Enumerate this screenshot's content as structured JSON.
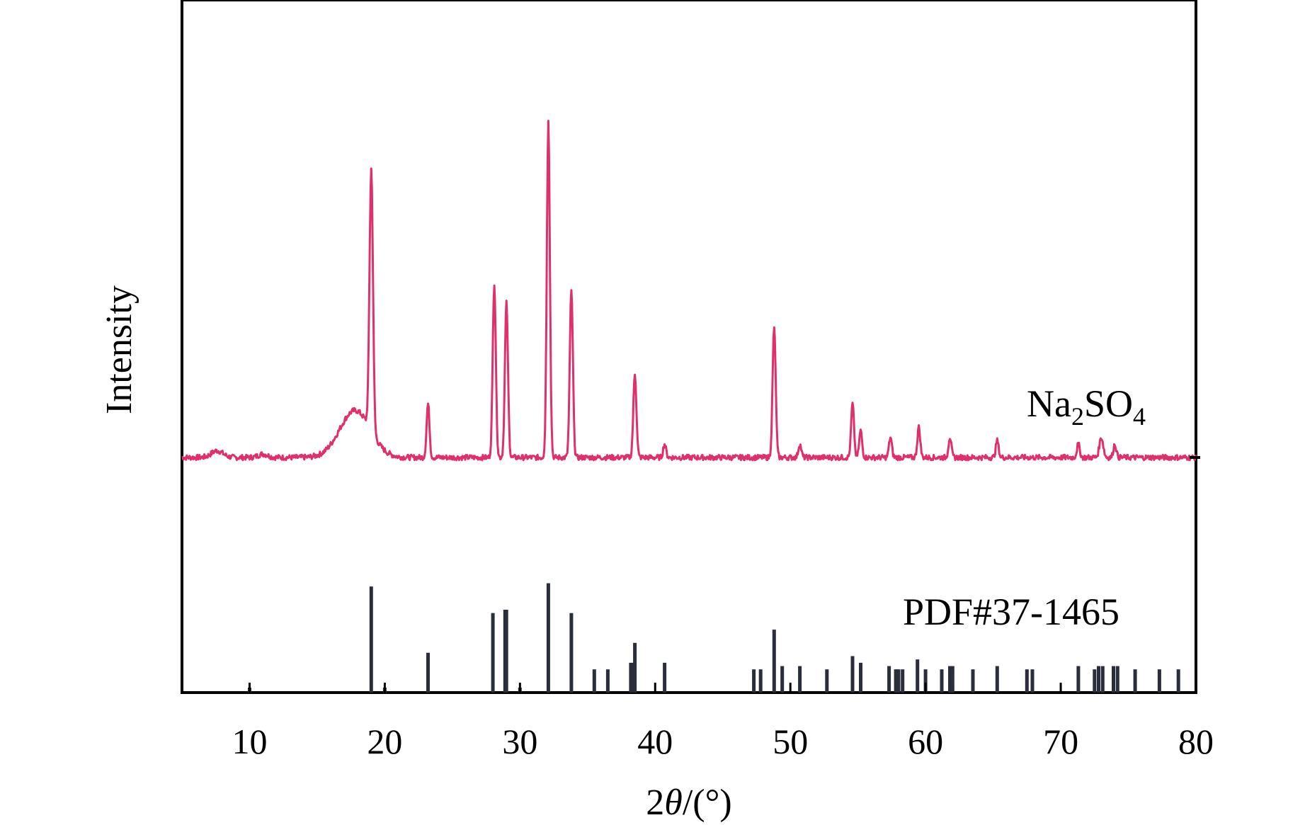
{
  "chart_data": {
    "type": "line",
    "xlabel_parts": {
      "prefix": "2",
      "theta": "θ",
      "suffix": "/(°)"
    },
    "ylabel": "Intensity",
    "xlim": [
      5,
      80
    ],
    "xticks": [
      10,
      20,
      30,
      40,
      50,
      60,
      70,
      80
    ],
    "grid": false,
    "colors": {
      "pattern": "#e0306a",
      "reference": "#2a2d3a",
      "axes": "#000000"
    },
    "series": [
      {
        "name": "Na2SO4",
        "label_main": "Na",
        "label_sub1": "2",
        "label_mid": "SO",
        "label_sub2": "4",
        "baseline": 0,
        "peaks": [
          {
            "x": 7.6,
            "y": 2,
            "w": 0.6
          },
          {
            "x": 11.0,
            "y": 1,
            "w": 0.5
          },
          {
            "x": 17.8,
            "y": 14,
            "w": 1.6
          },
          {
            "x": 19.0,
            "y": 78,
            "w": 0.18
          },
          {
            "x": 23.2,
            "y": 16,
            "w": 0.15
          },
          {
            "x": 28.1,
            "y": 52,
            "w": 0.16
          },
          {
            "x": 29.0,
            "y": 46,
            "w": 0.16
          },
          {
            "x": 32.1,
            "y": 100,
            "w": 0.16
          },
          {
            "x": 33.8,
            "y": 50,
            "w": 0.16
          },
          {
            "x": 38.5,
            "y": 25,
            "w": 0.16
          },
          {
            "x": 40.7,
            "y": 4,
            "w": 0.15
          },
          {
            "x": 48.8,
            "y": 39,
            "w": 0.16
          },
          {
            "x": 50.7,
            "y": 4,
            "w": 0.15
          },
          {
            "x": 54.6,
            "y": 16,
            "w": 0.15
          },
          {
            "x": 55.2,
            "y": 8,
            "w": 0.15
          },
          {
            "x": 57.4,
            "y": 6,
            "w": 0.15
          },
          {
            "x": 59.5,
            "y": 9,
            "w": 0.15
          },
          {
            "x": 61.8,
            "y": 6,
            "w": 0.15
          },
          {
            "x": 65.3,
            "y": 5,
            "w": 0.15
          },
          {
            "x": 71.3,
            "y": 4,
            "w": 0.15
          },
          {
            "x": 73.0,
            "y": 6,
            "w": 0.2
          },
          {
            "x": 74.0,
            "y": 4,
            "w": 0.15
          }
        ]
      },
      {
        "name": "PDF#37-1465",
        "x": [
          10.0,
          19.0,
          20.0,
          23.2,
          28.0,
          28.9,
          29.0,
          30.0,
          32.1,
          33.8,
          35.5,
          36.5,
          38.2,
          38.4,
          38.5,
          40.7,
          47.3,
          47.8,
          48.8,
          49.4,
          50.7,
          52.7,
          54.6,
          55.2,
          57.3,
          57.8,
          58.0,
          58.3,
          59.4,
          60.0,
          61.2,
          61.8,
          62.0,
          63.5,
          65.3,
          67.5,
          67.9,
          71.3,
          72.5,
          72.8,
          73.1,
          73.9,
          74.2,
          75.5,
          77.3,
          78.7
        ],
        "y": [
          1.5,
          32,
          1.5,
          12,
          24,
          25,
          25,
          1.5,
          33,
          24,
          7,
          7,
          9,
          9,
          15,
          9,
          7,
          7,
          19,
          8,
          8,
          7,
          11,
          9,
          8,
          7,
          7,
          7,
          10,
          7,
          7,
          8,
          8,
          7,
          8,
          7,
          7,
          8,
          7,
          8,
          8,
          8,
          8,
          7,
          7,
          7
        ]
      }
    ]
  }
}
